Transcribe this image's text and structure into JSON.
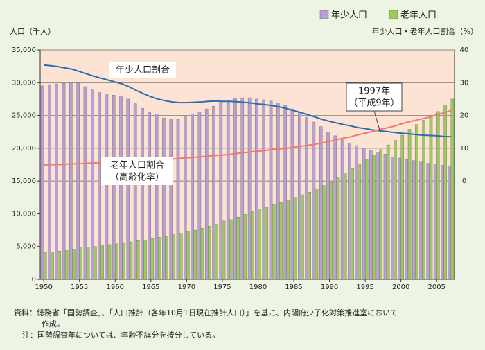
{
  "chart_data": {
    "type": "bar",
    "y_label": "人口（千人）",
    "y2_label": "年少人口・老年人口割合（%）",
    "x": [
      1950,
      1951,
      1952,
      1953,
      1954,
      1955,
      1956,
      1957,
      1958,
      1959,
      1960,
      1961,
      1962,
      1963,
      1964,
      1965,
      1966,
      1967,
      1968,
      1969,
      1970,
      1971,
      1972,
      1973,
      1974,
      1975,
      1976,
      1977,
      1978,
      1979,
      1980,
      1981,
      1982,
      1983,
      1984,
      1985,
      1986,
      1987,
      1988,
      1989,
      1990,
      1991,
      1992,
      1993,
      1994,
      1995,
      1996,
      1997,
      1998,
      1999,
      2000,
      2001,
      2002,
      2003,
      2004,
      2005,
      2006,
      2007
    ],
    "xlim": [
      1949.5,
      2007.5
    ],
    "xticks": [
      1950,
      1955,
      1960,
      1965,
      1970,
      1975,
      1980,
      1985,
      1990,
      1995,
      2000,
      2005
    ],
    "ylim": [
      0,
      35000
    ],
    "yticks": [
      0,
      {
        "value": 5000,
        "label": "5,000"
      },
      {
        "value": 10000,
        "label": "10,000"
      },
      {
        "value": 15000,
        "label": "15,000"
      },
      {
        "value": 20000,
        "label": "20,000"
      },
      {
        "value": 25000,
        "label": "25,000"
      },
      {
        "value": 30000,
        "label": "30,000"
      },
      {
        "value": 35000,
        "label": "35,000"
      }
    ],
    "y2lim": [
      -30,
      40
    ],
    "y2ticks": [
      0,
      10,
      20,
      30,
      40
    ],
    "legend": "top-right",
    "series": [
      {
        "name": "年少人口",
        "color": "#b9a0d4",
        "values": [
          29500,
          29700,
          29800,
          29900,
          30000,
          30000,
          29400,
          28900,
          28500,
          28300,
          28100,
          28000,
          27500,
          26800,
          26100,
          25500,
          25200,
          24600,
          24500,
          24400,
          24800,
          25200,
          25500,
          26000,
          26400,
          27000,
          27300,
          27600,
          27700,
          27700,
          27500,
          27400,
          27200,
          26900,
          26500,
          26000,
          25400,
          24700,
          24000,
          23300,
          22500,
          21900,
          21400,
          20800,
          20400,
          20000,
          19700,
          19400,
          19100,
          18700,
          18500,
          18300,
          18100,
          17900,
          17700,
          17600,
          17400,
          17300
        ]
      },
      {
        "name": "老年人口",
        "color": "#9dcb5c",
        "values": [
          4100,
          4200,
          4300,
          4500,
          4600,
          4800,
          4900,
          5000,
          5200,
          5300,
          5400,
          5600,
          5700,
          5900,
          6000,
          6200,
          6400,
          6600,
          6800,
          7000,
          7300,
          7500,
          7800,
          8100,
          8400,
          8900,
          9100,
          9500,
          9900,
          10300,
          10600,
          11000,
          11400,
          11700,
          12000,
          12500,
          12900,
          13300,
          13800,
          14300,
          14900,
          15500,
          16200,
          16900,
          17600,
          18300,
          19000,
          19800,
          20500,
          21200,
          22000,
          22900,
          23600,
          24300,
          24900,
          25600,
          26600,
          27500
        ]
      },
      {
        "type": "line",
        "axis": "y2",
        "color": "#2b6cb4",
        "values": [
          35.4,
          35.2,
          34.9,
          34.5,
          34.1,
          33.4,
          32.7,
          32.0,
          31.4,
          30.8,
          30.2,
          29.6,
          28.7,
          27.6,
          26.6,
          25.7,
          25.0,
          24.5,
          24.1,
          23.9,
          23.9,
          24.0,
          24.1,
          24.3,
          24.4,
          24.3,
          24.3,
          24.2,
          24.0,
          23.8,
          23.5,
          23.3,
          23.0,
          22.6,
          22.1,
          21.5,
          20.9,
          20.2,
          19.5,
          18.8,
          18.2,
          17.7,
          17.2,
          16.8,
          16.3,
          16.0,
          15.6,
          15.3,
          15.1,
          14.8,
          14.6,
          14.4,
          14.2,
          14.0,
          13.9,
          13.8,
          13.6,
          13.5
        ]
      },
      {
        "type": "line",
        "axis": "y2",
        "color": "#ef7a6c",
        "values": [
          4.9,
          5.0,
          5.0,
          5.1,
          5.2,
          5.3,
          5.4,
          5.5,
          5.6,
          5.6,
          5.7,
          5.8,
          5.9,
          6.0,
          6.1,
          6.3,
          6.4,
          6.5,
          6.7,
          6.9,
          7.1,
          7.2,
          7.4,
          7.6,
          7.8,
          7.9,
          8.1,
          8.4,
          8.6,
          8.9,
          9.1,
          9.3,
          9.6,
          9.8,
          10.0,
          10.3,
          10.6,
          10.9,
          11.2,
          11.6,
          12.1,
          12.6,
          13.1,
          13.5,
          14.1,
          14.6,
          15.1,
          15.7,
          16.2,
          16.7,
          17.4,
          18.0,
          18.5,
          19.0,
          19.5,
          20.2,
          20.8,
          21.5
        ]
      }
    ],
    "annotations": [
      {
        "lines": [
          "年少人口割合"
        ]
      },
      {
        "lines": [
          "老年人口割合",
          "（高齢化率）"
        ]
      },
      {
        "lines": [
          "1997年",
          "（平成9年）"
        ]
      }
    ],
    "source_lines": [
      "資料：総務省「国勢調査」、「人口推計（各年10月1日現在推計人口）」を基に、内閣府少子化対策推進室において",
      "作成。"
    ],
    "note": "注：国勢調査年については、年齢不詳分を按分している。"
  }
}
